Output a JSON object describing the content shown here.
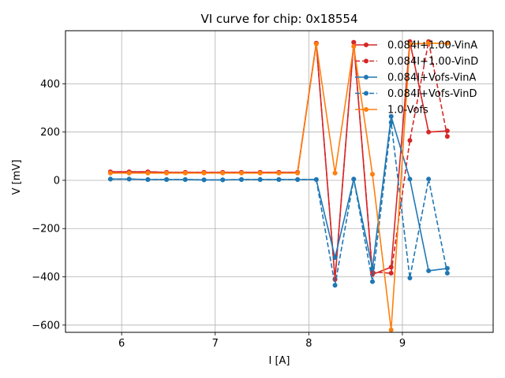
{
  "chart_data": {
    "type": "line",
    "title": "VI curve for chip: 0x18554",
    "xlabel": "I [A]",
    "ylabel": "V [mV]",
    "xlim": [
      5.4,
      9.97
    ],
    "ylim": [
      -630,
      620
    ],
    "xticks": [
      6,
      7,
      8,
      9
    ],
    "yticks": [
      -600,
      -400,
      -200,
      0,
      200,
      400
    ],
    "grid": true,
    "legend_position": "top-right",
    "x": [
      5.88,
      6.08,
      6.28,
      6.48,
      6.68,
      6.88,
      7.08,
      7.28,
      7.48,
      7.68,
      7.88,
      8.08,
      8.28,
      8.48,
      8.68,
      8.88,
      9.08,
      9.28,
      9.48
    ],
    "series": [
      {
        "name": "0.084I+1.00-VinA",
        "color": "#d62728",
        "dashed": false,
        "values": [
          35,
          35,
          35,
          33,
          33,
          33,
          33,
          33,
          33,
          33,
          33,
          568,
          -410,
          572,
          -390,
          -360,
          575,
          200,
          205
        ]
      },
      {
        "name": "0.084I+1.00-VinD",
        "color": "#d62728",
        "dashed": true,
        "values": [
          35,
          35,
          35,
          33,
          33,
          33,
          33,
          33,
          33,
          33,
          33,
          568,
          -410,
          572,
          -380,
          -385,
          165,
          575,
          182
        ]
      },
      {
        "name": "0.084I+Vofs-VinA",
        "color": "#1f77b4",
        "dashed": false,
        "values": [
          5,
          5,
          3,
          3,
          3,
          2,
          2,
          3,
          3,
          3,
          3,
          3,
          -320,
          5,
          -365,
          265,
          5,
          -375,
          -365
        ]
      },
      {
        "name": "0.084I+Vofs-VinD",
        "color": "#1f77b4",
        "dashed": true,
        "values": [
          5,
          5,
          3,
          3,
          3,
          2,
          2,
          3,
          3,
          3,
          3,
          3,
          -435,
          5,
          -420,
          240,
          -405,
          5,
          -385
        ]
      },
      {
        "name": "1.0-Vofs",
        "color": "#ff7f0e",
        "dashed": false,
        "values": [
          30,
          30,
          30,
          30,
          30,
          30,
          30,
          30,
          30,
          30,
          30,
          565,
          30,
          555,
          25,
          -620,
          565,
          568,
          568
        ]
      }
    ]
  }
}
